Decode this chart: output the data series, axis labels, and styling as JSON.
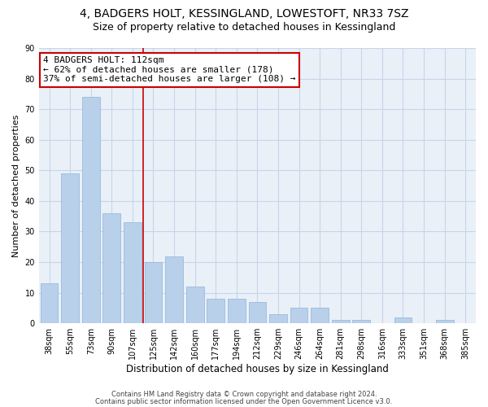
{
  "title1": "4, BADGERS HOLT, KESSINGLAND, LOWESTOFT, NR33 7SZ",
  "title2": "Size of property relative to detached houses in Kessingland",
  "xlabel": "Distribution of detached houses by size in Kessingland",
  "ylabel": "Number of detached properties",
  "categories": [
    "38sqm",
    "55sqm",
    "73sqm",
    "90sqm",
    "107sqm",
    "125sqm",
    "142sqm",
    "160sqm",
    "177sqm",
    "194sqm",
    "212sqm",
    "229sqm",
    "246sqm",
    "264sqm",
    "281sqm",
    "298sqm",
    "316sqm",
    "333sqm",
    "351sqm",
    "368sqm",
    "385sqm"
  ],
  "values": [
    13,
    49,
    74,
    36,
    33,
    20,
    22,
    12,
    8,
    8,
    7,
    3,
    5,
    5,
    1,
    1,
    0,
    2,
    0,
    1,
    0
  ],
  "bar_color": "#b8d0ea",
  "bar_edge_color": "#8fb4d8",
  "grid_color": "#c8d4e8",
  "bg_color": "#eaf0f8",
  "vline_x": 4.5,
  "vline_color": "#cc0000",
  "annotation_line1": "4 BADGERS HOLT: 112sqm",
  "annotation_line2": "← 62% of detached houses are smaller (178)",
  "annotation_line3": "37% of semi-detached houses are larger (108) →",
  "annotation_box_color": "#ffffff",
  "annotation_edge_color": "#cc0000",
  "footnote1": "Contains HM Land Registry data © Crown copyright and database right 2024.",
  "footnote2": "Contains public sector information licensed under the Open Government Licence v3.0.",
  "ylim": [
    0,
    90
  ],
  "title_fontsize": 10,
  "subtitle_fontsize": 9,
  "xlabel_fontsize": 8.5,
  "ylabel_fontsize": 8,
  "tick_fontsize": 7,
  "annot_fontsize": 8
}
